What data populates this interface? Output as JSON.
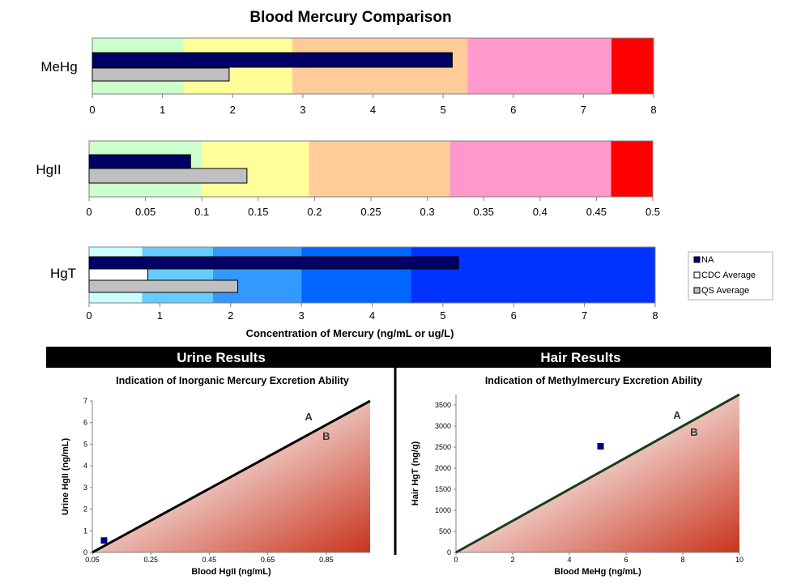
{
  "chart_data": [
    {
      "type": "bar",
      "id": "mehg",
      "title": "Blood Mercury Comparison",
      "ylabel": "MeHg",
      "xlim": [
        0,
        8
      ],
      "ticks": [
        0,
        1,
        2,
        3,
        4,
        5,
        6,
        7,
        8
      ],
      "tick_labels": [
        "0",
        "1",
        "2",
        "3",
        "4",
        "5",
        "6",
        "7",
        "8"
      ],
      "bands": [
        {
          "from": 0,
          "to": 1.3,
          "color": "#ccffcc"
        },
        {
          "from": 1.3,
          "to": 2.85,
          "color": "#ffff99"
        },
        {
          "from": 2.85,
          "to": 5.35,
          "color": "#ffcc99"
        },
        {
          "from": 5.35,
          "to": 7.4,
          "color": "#ff99cc"
        },
        {
          "from": 7.4,
          "to": 8,
          "color": "#ff0000"
        }
      ],
      "series": [
        {
          "name": "NA",
          "value": 5.13,
          "color": "#000066"
        },
        {
          "name": "QS Average",
          "value": 1.95,
          "color": "#c0c0c0"
        }
      ]
    },
    {
      "type": "bar",
      "id": "hgii",
      "ylabel": "HgII",
      "xlim": [
        0,
        0.5
      ],
      "ticks": [
        0,
        0.05,
        0.1,
        0.15,
        0.2,
        0.25,
        0.3,
        0.35,
        0.4,
        0.45,
        0.5
      ],
      "tick_labels": [
        "0",
        "0.05",
        "0.1",
        "0.15",
        "0.2",
        "0.25",
        "0.3",
        "0.35",
        "0.4",
        "0.45",
        "0.5"
      ],
      "bands": [
        {
          "from": 0,
          "to": 0.1,
          "color": "#ccffcc"
        },
        {
          "from": 0.1,
          "to": 0.195,
          "color": "#ffff99"
        },
        {
          "from": 0.195,
          "to": 0.32,
          "color": "#ffcc99"
        },
        {
          "from": 0.32,
          "to": 0.463,
          "color": "#ff99cc"
        },
        {
          "from": 0.463,
          "to": 0.5,
          "color": "#ff0000"
        }
      ],
      "series": [
        {
          "name": "NA",
          "value": 0.09,
          "color": "#000066"
        },
        {
          "name": "QS Average",
          "value": 0.14,
          "color": "#c0c0c0"
        }
      ]
    },
    {
      "type": "bar",
      "id": "hgt",
      "ylabel": "HgT",
      "xlabel": "Concentration of Mercury (ng/mL or ug/L)",
      "xlim": [
        0,
        8
      ],
      "ticks": [
        0,
        1,
        2,
        3,
        4,
        5,
        6,
        7,
        8
      ],
      "tick_labels": [
        "0",
        "1",
        "2",
        "3",
        "4",
        "5",
        "6",
        "7",
        "8"
      ],
      "bands": [
        {
          "from": 0,
          "to": 0.75,
          "color": "#ccffff"
        },
        {
          "from": 0.75,
          "to": 1.75,
          "color": "#66ccff"
        },
        {
          "from": 1.75,
          "to": 3.0,
          "color": "#3399ff"
        },
        {
          "from": 3.0,
          "to": 4.55,
          "color": "#0066ff"
        },
        {
          "from": 4.55,
          "to": 8,
          "color": "#0033ff"
        }
      ],
      "series": [
        {
          "name": "NA",
          "value": 5.22,
          "color": "#000066"
        },
        {
          "name": "CDC Average",
          "value": 0.83,
          "color": "#ffffff"
        },
        {
          "name": "QS Average",
          "value": 2.1,
          "color": "#c0c0c0"
        }
      ],
      "legend": {
        "position": "right",
        "entries": [
          {
            "label": "NA",
            "color": "#000066"
          },
          {
            "label": "CDC Average",
            "color": "#ffffff"
          },
          {
            "label": "QS Average",
            "color": "#c0c0c0"
          }
        ]
      }
    },
    {
      "type": "scatter",
      "id": "urine",
      "section_title": "Urine Results",
      "title": "Indication of Inorganic Mercury Excretion Ability",
      "xlabel": "Blood HgII (ng/mL)",
      "ylabel": "Urine HgII (ng/mL)",
      "xlim": [
        0.05,
        1.0
      ],
      "ylim": [
        0,
        7
      ],
      "x_ticks": [
        0.05,
        0.25,
        0.45,
        0.65,
        0.85
      ],
      "x_tick_labels": [
        "0.05",
        "0.25",
        "0.45",
        "0.65",
        "0.85"
      ],
      "y_ticks": [
        0,
        1,
        2,
        3,
        4,
        5,
        6,
        7
      ],
      "y_tick_labels": [
        "0",
        "1",
        "2",
        "3",
        "4",
        "5",
        "6",
        "7"
      ],
      "threshold_line": {
        "from": [
          0.05,
          0
        ],
        "to": [
          1.0,
          7.0
        ],
        "color": "#000000"
      },
      "region_labels": [
        {
          "text": "A",
          "x": 0.79,
          "y": 6.1
        },
        {
          "text": "B",
          "x": 0.85,
          "y": 5.2
        }
      ],
      "points": [
        {
          "x": 0.09,
          "y": 0.55
        }
      ]
    },
    {
      "type": "scatter",
      "id": "hair",
      "section_title": "Hair Results",
      "title": "Indication of Methylmercury Excretion Ability",
      "xlabel": "Blood MeHg (ng/mL)",
      "ylabel": "Hair HgT (ng/g)",
      "xlim": [
        0,
        10
      ],
      "ylim": [
        0,
        3750
      ],
      "x_ticks": [
        0,
        2,
        4,
        6,
        8,
        10
      ],
      "x_tick_labels": [
        "0",
        "2",
        "4",
        "6",
        "8",
        "10"
      ],
      "y_ticks": [
        0,
        500,
        1000,
        1500,
        2000,
        2500,
        3000,
        3500
      ],
      "y_tick_labels": [
        "0",
        "500",
        "1000",
        "1500",
        "2000",
        "2500",
        "3000",
        "3500"
      ],
      "threshold_line": {
        "from": [
          0,
          0
        ],
        "to": [
          10,
          3750
        ],
        "color": "#1a3d1a"
      },
      "region_labels": [
        {
          "text": "A",
          "x": 7.8,
          "y": 3170
        },
        {
          "text": "B",
          "x": 8.4,
          "y": 2770
        }
      ],
      "points": [
        {
          "x": 5.1,
          "y": 2520
        }
      ]
    }
  ]
}
